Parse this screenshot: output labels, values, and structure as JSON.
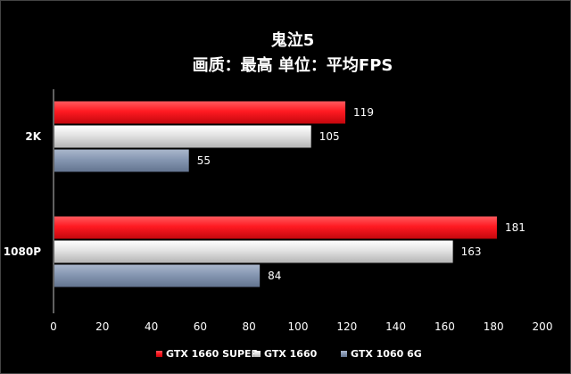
{
  "chart_data": {
    "type": "bar",
    "orientation": "horizontal",
    "title": "鬼泣5",
    "subtitle": "画质：最高  单位：平均FPS",
    "categories": [
      "2K",
      "1080P"
    ],
    "series": [
      {
        "name": "GTX 1660 SUPER",
        "values": [
          119,
          181
        ],
        "color": "#e8141a"
      },
      {
        "name": "GTX 1660",
        "values": [
          105,
          163
        ],
        "color": "#d6d6d6"
      },
      {
        "name": "GTX 1060 6G",
        "values": [
          55,
          84
        ],
        "color": "#8496b0"
      }
    ],
    "xlim": [
      0,
      200
    ],
    "xticks": [
      0,
      20,
      40,
      60,
      80,
      100,
      120,
      140,
      160,
      180,
      200
    ],
    "grid": false,
    "legend_position": "bottom",
    "data_labels": true,
    "background": "#000000",
    "text_color": "#ffffff"
  }
}
